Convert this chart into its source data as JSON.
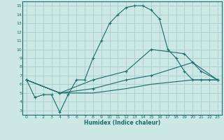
{
  "xlabel": "Humidex (Indice chaleur)",
  "bg_color": "#cce8e4",
  "grid_color": "#aacccc",
  "line_color": "#1a6b6b",
  "xlim": [
    -0.5,
    23.5
  ],
  "ylim": [
    2.5,
    15.5
  ],
  "xticks": [
    0,
    1,
    2,
    3,
    4,
    5,
    6,
    7,
    8,
    9,
    10,
    11,
    12,
    13,
    14,
    15,
    16,
    17,
    18,
    19,
    20,
    21,
    22,
    23
  ],
  "yticks": [
    3,
    4,
    5,
    6,
    7,
    8,
    9,
    10,
    11,
    12,
    13,
    14,
    15
  ],
  "line1_x": [
    0,
    1,
    2,
    3,
    4,
    5,
    6,
    7,
    8,
    9,
    10,
    11,
    12,
    13,
    14,
    15,
    16,
    17,
    18,
    19,
    20,
    21,
    22,
    23
  ],
  "line1_y": [
    6.5,
    4.5,
    4.8,
    4.8,
    2.8,
    4.8,
    6.5,
    6.5,
    9.0,
    11.0,
    13.0,
    14.0,
    14.8,
    15.0,
    15.0,
    14.5,
    13.5,
    10.0,
    9.0,
    7.5,
    6.5,
    6.5,
    6.5,
    6.5
  ],
  "line2_x": [
    0,
    4,
    8,
    12,
    15,
    19,
    20,
    23
  ],
  "line2_y": [
    6.5,
    5.0,
    6.5,
    7.5,
    10.0,
    9.5,
    8.5,
    6.5
  ],
  "line3_x": [
    0,
    4,
    8,
    12,
    15,
    20,
    21,
    23
  ],
  "line3_y": [
    6.5,
    5.0,
    5.5,
    6.5,
    7.0,
    8.5,
    7.5,
    6.5
  ],
  "line4_x": [
    0,
    4,
    8,
    12,
    15,
    20,
    23
  ],
  "line4_y": [
    6.5,
    5.0,
    5.0,
    5.5,
    6.0,
    6.5,
    6.5
  ]
}
